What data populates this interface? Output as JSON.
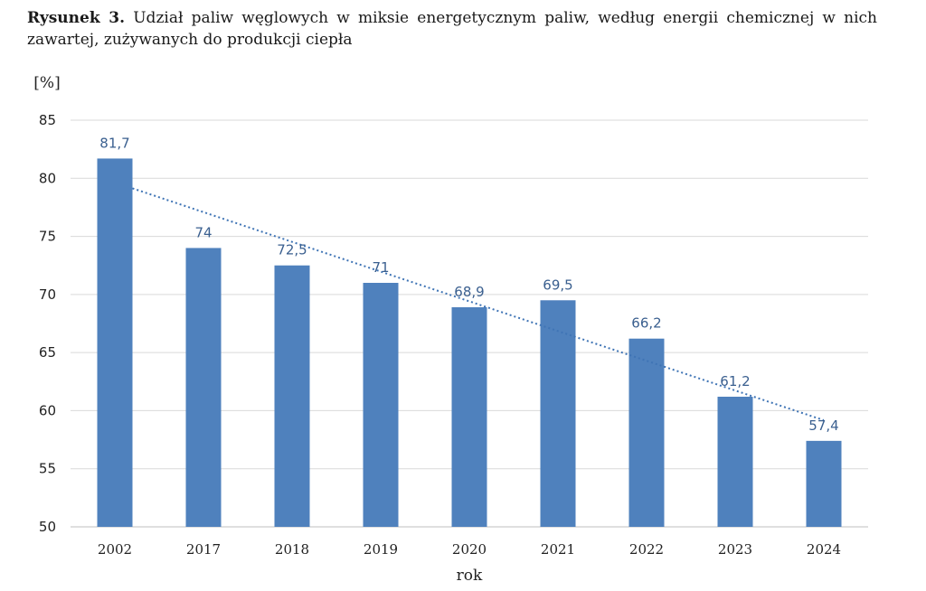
{
  "figure": {
    "prefix": "Rysunek 3.",
    "caption": "Udział paliw węglowych w miksie energetycznym paliw, według energii chemicznej w nich zawartej, zużywanych do produkcji ciepła"
  },
  "chart_data": {
    "type": "bar",
    "categories": [
      "2002",
      "2017",
      "2018",
      "2019",
      "2020",
      "2021",
      "2022",
      "2023",
      "2024"
    ],
    "values": [
      81.7,
      74,
      72.5,
      71,
      68.9,
      69.5,
      66.2,
      61.2,
      57.4
    ],
    "value_labels": [
      "81,7",
      "74",
      "72,5",
      "71",
      "68,9",
      "69,5",
      "66,2",
      "61,2",
      "57,4"
    ],
    "ylabel": "[%]",
    "xlabel": "rok",
    "ylim": [
      50,
      85
    ],
    "yticks": [
      50,
      55,
      60,
      65,
      70,
      75,
      80,
      85
    ],
    "grid": true,
    "trendline": {
      "type": "linear",
      "style": "dotted"
    },
    "colors": {
      "bar": "#4f81bd",
      "label": "#3a5f8f",
      "trend": "#3f74b5",
      "grid": "#d9d9d9"
    }
  }
}
